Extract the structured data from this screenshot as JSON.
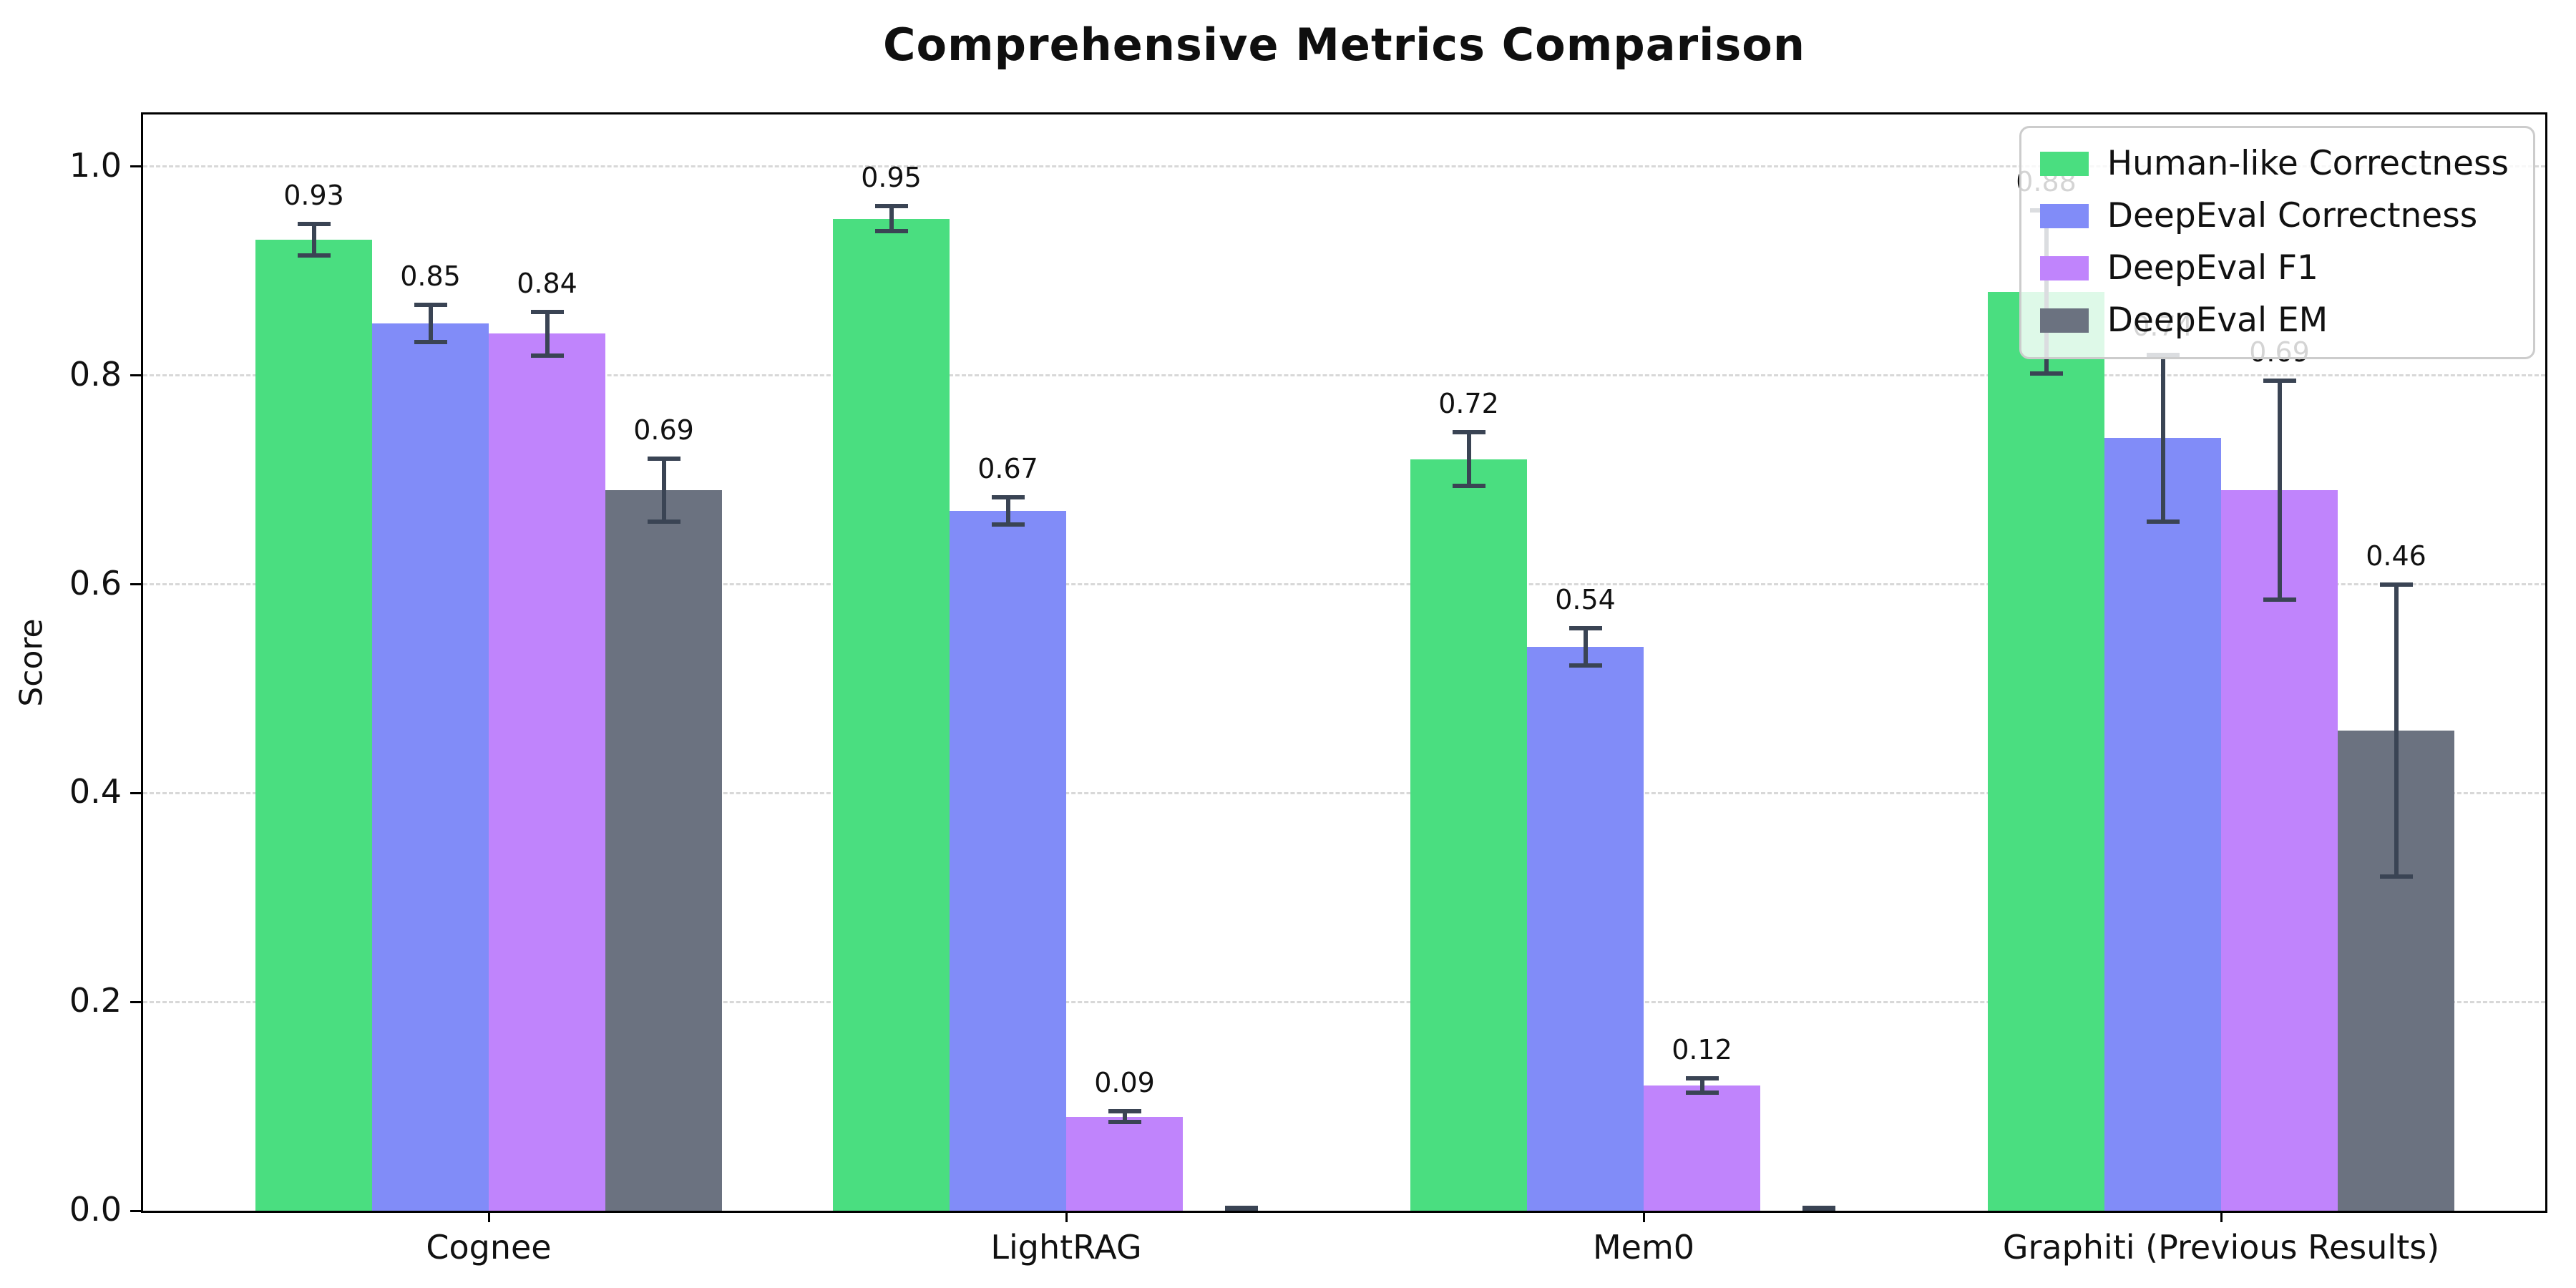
{
  "chart_data": {
    "type": "bar",
    "title": "Comprehensive Metrics Comparison",
    "ylabel": "Score",
    "xlabel": "",
    "ylim": [
      0,
      1.05
    ],
    "yticks": [
      "0.0",
      "0.2",
      "0.4",
      "0.6",
      "0.8",
      "1.0"
    ],
    "grid": "horizontal dashed",
    "legend_position": "upper right",
    "categories": [
      "Cognee",
      "LightRAG",
      "Mem0",
      "Graphiti (Previous Results)"
    ],
    "series": [
      {
        "name": "Human-like Correctness",
        "color": "#4ade80",
        "values": [
          0.93,
          0.95,
          0.72,
          0.88
        ],
        "errors": [
          0.015,
          0.012,
          0.026,
          0.078
        ],
        "labels": [
          "0.93",
          "0.95",
          "0.72",
          "0.88"
        ]
      },
      {
        "name": "DeepEval Correctness",
        "color": "#818cf8",
        "values": [
          0.85,
          0.67,
          0.54,
          0.74
        ],
        "errors": [
          0.018,
          0.013,
          0.018,
          0.08
        ],
        "labels": [
          "0.85",
          "0.67",
          "0.54",
          "0.74"
        ]
      },
      {
        "name": "DeepEval F1",
        "color": "#c084fc",
        "values": [
          0.84,
          0.09,
          0.12,
          0.69
        ],
        "errors": [
          0.021,
          0.005,
          0.007,
          0.105
        ],
        "labels": [
          "0.84",
          "0.09",
          "0.12",
          "0.69"
        ]
      },
      {
        "name": "DeepEval EM",
        "color": "#6b7280",
        "values": [
          0.69,
          0.0,
          0.0,
          0.46
        ],
        "errors": [
          0.03,
          0.003,
          0.003,
          0.14
        ],
        "labels": [
          "0.69",
          "",
          "",
          "0.46"
        ]
      }
    ],
    "colors": {
      "error_bar": "#3a4454",
      "grid": "#d8d8d8",
      "axis": "#000000",
      "background": "#ffffff",
      "legend_border": "#cccccc"
    }
  }
}
